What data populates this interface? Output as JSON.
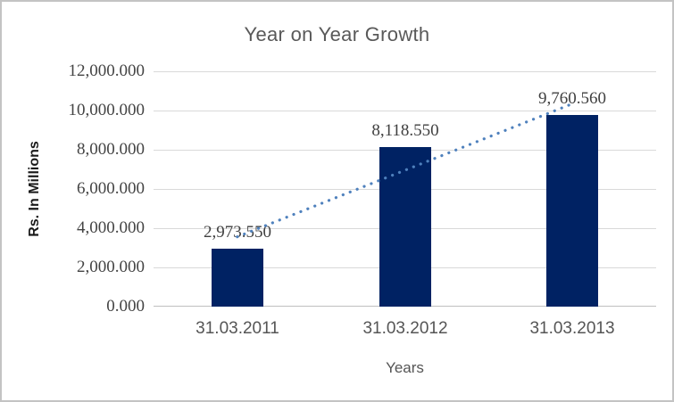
{
  "window": {
    "background": "#ffffff",
    "border_color": "#c3c3c3"
  },
  "chart_data": {
    "type": "bar",
    "title": "Year on Year Growth",
    "xlabel": "Years",
    "ylabel": "Rs. In Millions",
    "categories": [
      "31.03.2011",
      "31.03.2012",
      "31.03.2013"
    ],
    "values": [
      2973.55,
      8118.55,
      9760.56
    ],
    "data_labels": [
      "2,973.550",
      "8,118.550",
      "9,760.560"
    ],
    "ylim": [
      0,
      12000
    ],
    "yticks": [
      0,
      2000,
      4000,
      6000,
      8000,
      10000,
      12000
    ],
    "ytick_labels": [
      "0.000",
      "2,000.000",
      "4,000.000",
      "6,000.000",
      "8,000.000",
      "10,000.000",
      "12,000.000"
    ],
    "grid": true,
    "legend": "none",
    "trendline": {
      "type": "linear",
      "style": "dotted"
    },
    "colors": {
      "bar": "#002263",
      "trendline": "#4f81bd",
      "gridline": "#d9d9d9",
      "axis_line": "#bfbfbf",
      "title_text": "#595959",
      "ytick_text": "#444444",
      "xtick_text": "#555555",
      "data_label_text": "#404040",
      "y_axis_title_text": "#1a1a1a"
    }
  }
}
